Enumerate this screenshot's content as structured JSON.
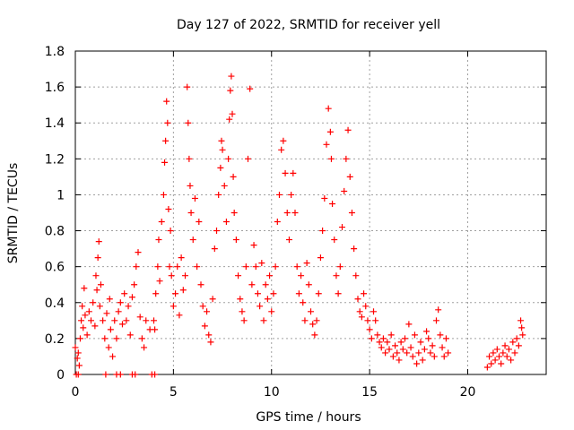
{
  "chart_data": {
    "type": "scatter",
    "title": "Day 127 of 2022, SRMTID for receiver yell",
    "xlabel": "GPS time / hours",
    "ylabel": "SRMTID / TECUs",
    "xlim": [
      0,
      24
    ],
    "ylim": [
      0,
      1.8
    ],
    "xticks": [
      "0",
      "5",
      "10",
      "15",
      "20"
    ],
    "xtick_values": [
      0,
      5,
      10,
      15,
      20
    ],
    "yticks": [
      "0",
      "0.2",
      "0.4",
      "0.6",
      "0.8",
      "1",
      "1.2",
      "1.4",
      "1.6",
      "1.8"
    ],
    "ytick_values": [
      0,
      0.2,
      0.4,
      0.6,
      0.8,
      1.0,
      1.2,
      1.4,
      1.6,
      1.8
    ],
    "grid": true,
    "marker": "+",
    "color": "#ff0000",
    "series": [
      {
        "name": "SRMTID",
        "points": [
          [
            0.0,
            0.15
          ],
          [
            0.1,
            0.09
          ],
          [
            0.15,
            0.12
          ],
          [
            0.2,
            0.05
          ],
          [
            0.25,
            0.2
          ],
          [
            0.3,
            0.3
          ],
          [
            0.35,
            0.38
          ],
          [
            0.4,
            0.26
          ],
          [
            0.45,
            0.48
          ],
          [
            0.5,
            0.33
          ],
          [
            0.6,
            0.22
          ],
          [
            0.7,
            0.35
          ],
          [
            0.8,
            0.3
          ],
          [
            0.9,
            0.4
          ],
          [
            1.0,
            0.27
          ],
          [
            1.05,
            0.55
          ],
          [
            1.1,
            0.47
          ],
          [
            1.15,
            0.65
          ],
          [
            1.2,
            0.74
          ],
          [
            1.25,
            0.38
          ],
          [
            1.3,
            0.5
          ],
          [
            1.4,
            0.3
          ],
          [
            1.5,
            0.2
          ],
          [
            1.6,
            0.34
          ],
          [
            1.7,
            0.15
          ],
          [
            1.75,
            0.42
          ],
          [
            1.8,
            0.25
          ],
          [
            1.9,
            0.1
          ],
          [
            2.0,
            0.3
          ],
          [
            2.1,
            0.2
          ],
          [
            2.2,
            0.35
          ],
          [
            2.3,
            0.4
          ],
          [
            2.4,
            0.28
          ],
          [
            2.5,
            0.45
          ],
          [
            2.6,
            0.3
          ],
          [
            2.7,
            0.38
          ],
          [
            2.8,
            0.22
          ],
          [
            2.9,
            0.43
          ],
          [
            3.0,
            0.5
          ],
          [
            3.1,
            0.6
          ],
          [
            3.2,
            0.68
          ],
          [
            3.3,
            0.32
          ],
          [
            3.4,
            0.2
          ],
          [
            3.5,
            0.15
          ],
          [
            3.6,
            0.3
          ],
          [
            3.8,
            0.25
          ],
          [
            4.0,
            0.3
          ],
          [
            4.05,
            0.25
          ],
          [
            4.1,
            0.45
          ],
          [
            4.2,
            0.6
          ],
          [
            4.25,
            0.75
          ],
          [
            4.3,
            0.52
          ],
          [
            4.4,
            0.85
          ],
          [
            4.5,
            1.0
          ],
          [
            4.55,
            1.18
          ],
          [
            4.6,
            1.3
          ],
          [
            4.65,
            1.52
          ],
          [
            4.7,
            1.4
          ],
          [
            4.75,
            0.92
          ],
          [
            4.8,
            0.6
          ],
          [
            4.85,
            0.8
          ],
          [
            4.9,
            0.55
          ],
          [
            5.0,
            0.38
          ],
          [
            5.1,
            0.45
          ],
          [
            5.2,
            0.6
          ],
          [
            5.3,
            0.33
          ],
          [
            5.4,
            0.65
          ],
          [
            5.5,
            0.47
          ],
          [
            5.6,
            0.55
          ],
          [
            5.7,
            1.6
          ],
          [
            5.75,
            1.4
          ],
          [
            5.8,
            1.2
          ],
          [
            5.85,
            1.05
          ],
          [
            5.9,
            0.9
          ],
          [
            6.0,
            0.75
          ],
          [
            6.1,
            0.98
          ],
          [
            6.2,
            0.6
          ],
          [
            6.3,
            0.85
          ],
          [
            6.4,
            0.5
          ],
          [
            6.5,
            0.38
          ],
          [
            6.6,
            0.27
          ],
          [
            6.7,
            0.35
          ],
          [
            6.8,
            0.22
          ],
          [
            6.9,
            0.18
          ],
          [
            7.0,
            0.42
          ],
          [
            7.1,
            0.7
          ],
          [
            7.2,
            0.8
          ],
          [
            7.3,
            1.0
          ],
          [
            7.4,
            1.15
          ],
          [
            7.45,
            1.3
          ],
          [
            7.5,
            1.25
          ],
          [
            7.6,
            1.05
          ],
          [
            7.7,
            0.85
          ],
          [
            7.8,
            1.2
          ],
          [
            7.85,
            1.42
          ],
          [
            7.9,
            1.58
          ],
          [
            7.95,
            1.66
          ],
          [
            8.0,
            1.45
          ],
          [
            8.05,
            1.1
          ],
          [
            8.1,
            0.9
          ],
          [
            8.2,
            0.75
          ],
          [
            8.3,
            0.55
          ],
          [
            8.4,
            0.42
          ],
          [
            8.5,
            0.35
          ],
          [
            8.6,
            0.3
          ],
          [
            8.7,
            0.6
          ],
          [
            8.8,
            1.2
          ],
          [
            8.9,
            1.59
          ],
          [
            9.0,
            0.5
          ],
          [
            9.1,
            0.72
          ],
          [
            9.2,
            0.6
          ],
          [
            9.3,
            0.45
          ],
          [
            9.4,
            0.38
          ],
          [
            9.5,
            0.62
          ],
          [
            9.6,
            0.3
          ],
          [
            9.7,
            0.5
          ],
          [
            9.8,
            0.42
          ],
          [
            9.9,
            0.55
          ],
          [
            10.0,
            0.35
          ],
          [
            10.1,
            0.45
          ],
          [
            10.2,
            0.6
          ],
          [
            10.3,
            0.85
          ],
          [
            10.4,
            1.0
          ],
          [
            10.5,
            1.25
          ],
          [
            10.6,
            1.3
          ],
          [
            10.7,
            1.12
          ],
          [
            10.8,
            0.9
          ],
          [
            10.9,
            0.75
          ],
          [
            11.0,
            1.0
          ],
          [
            11.1,
            1.12
          ],
          [
            11.2,
            0.9
          ],
          [
            11.3,
            0.6
          ],
          [
            11.4,
            0.45
          ],
          [
            11.5,
            0.55
          ],
          [
            11.6,
            0.4
          ],
          [
            11.7,
            0.3
          ],
          [
            11.8,
            0.62
          ],
          [
            11.9,
            0.5
          ],
          [
            12.0,
            0.35
          ],
          [
            12.1,
            0.28
          ],
          [
            12.2,
            0.22
          ],
          [
            12.3,
            0.3
          ],
          [
            12.4,
            0.45
          ],
          [
            12.5,
            0.65
          ],
          [
            12.6,
            0.8
          ],
          [
            12.7,
            0.98
          ],
          [
            12.8,
            1.28
          ],
          [
            12.9,
            1.48
          ],
          [
            13.0,
            1.35
          ],
          [
            13.05,
            1.2
          ],
          [
            13.1,
            0.95
          ],
          [
            13.2,
            0.75
          ],
          [
            13.3,
            0.55
          ],
          [
            13.4,
            0.45
          ],
          [
            13.5,
            0.6
          ],
          [
            13.6,
            0.82
          ],
          [
            13.7,
            1.02
          ],
          [
            13.8,
            1.2
          ],
          [
            13.9,
            1.36
          ],
          [
            14.0,
            1.1
          ],
          [
            14.1,
            0.9
          ],
          [
            14.2,
            0.7
          ],
          [
            14.3,
            0.55
          ],
          [
            14.4,
            0.42
          ],
          [
            14.5,
            0.35
          ],
          [
            14.6,
            0.32
          ],
          [
            14.7,
            0.45
          ],
          [
            14.8,
            0.38
          ],
          [
            14.9,
            0.3
          ],
          [
            15.0,
            0.25
          ],
          [
            15.1,
            0.2
          ],
          [
            15.2,
            0.35
          ],
          [
            15.3,
            0.3
          ],
          [
            15.4,
            0.22
          ],
          [
            15.5,
            0.18
          ],
          [
            15.6,
            0.15
          ],
          [
            15.7,
            0.2
          ],
          [
            15.8,
            0.12
          ],
          [
            15.9,
            0.18
          ],
          [
            16.0,
            0.14
          ],
          [
            16.1,
            0.22
          ],
          [
            16.2,
            0.1
          ],
          [
            16.3,
            0.16
          ],
          [
            16.4,
            0.12
          ],
          [
            16.5,
            0.08
          ],
          [
            16.6,
            0.18
          ],
          [
            16.7,
            0.14
          ],
          [
            16.8,
            0.2
          ],
          [
            16.9,
            0.12
          ],
          [
            17.0,
            0.28
          ],
          [
            17.1,
            0.15
          ],
          [
            17.2,
            0.1
          ],
          [
            17.3,
            0.22
          ],
          [
            17.4,
            0.06
          ],
          [
            17.5,
            0.12
          ],
          [
            17.6,
            0.18
          ],
          [
            17.7,
            0.08
          ],
          [
            17.8,
            0.14
          ],
          [
            17.9,
            0.24
          ],
          [
            18.0,
            0.2
          ],
          [
            18.1,
            0.12
          ],
          [
            18.2,
            0.16
          ],
          [
            18.3,
            0.1
          ],
          [
            18.4,
            0.3
          ],
          [
            18.5,
            0.36
          ],
          [
            18.6,
            0.22
          ],
          [
            18.7,
            0.15
          ],
          [
            18.8,
            0.1
          ],
          [
            18.9,
            0.2
          ],
          [
            19.0,
            0.12
          ],
          [
            0.05,
            0.0
          ],
          [
            0.15,
            0.0
          ],
          [
            1.55,
            0.0
          ],
          [
            2.1,
            0.0
          ],
          [
            2.3,
            0.0
          ],
          [
            2.9,
            0.0
          ],
          [
            3.05,
            0.0
          ],
          [
            3.9,
            0.0
          ],
          [
            4.05,
            0.0
          ],
          [
            21.0,
            0.04
          ],
          [
            21.1,
            0.1
          ],
          [
            21.2,
            0.06
          ],
          [
            21.3,
            0.12
          ],
          [
            21.4,
            0.08
          ],
          [
            21.5,
            0.14
          ],
          [
            21.6,
            0.1
          ],
          [
            21.7,
            0.06
          ],
          [
            21.8,
            0.12
          ],
          [
            21.9,
            0.16
          ],
          [
            22.0,
            0.1
          ],
          [
            22.1,
            0.14
          ],
          [
            22.2,
            0.08
          ],
          [
            22.3,
            0.18
          ],
          [
            22.4,
            0.12
          ],
          [
            22.5,
            0.2
          ],
          [
            22.6,
            0.16
          ],
          [
            22.7,
            0.3
          ],
          [
            22.75,
            0.26
          ],
          [
            22.8,
            0.22
          ]
        ]
      }
    ]
  }
}
